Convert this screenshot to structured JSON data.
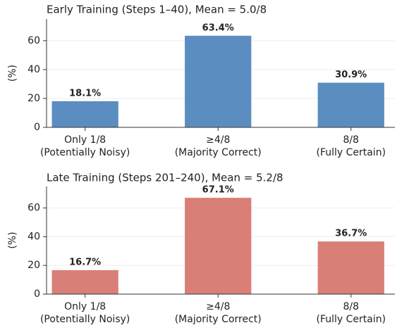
{
  "chart_data": [
    {
      "type": "bar",
      "title": "Early Training (Steps 1–40), Mean = 5.0/8",
      "title_color": "#4a72a8",
      "categories": [
        [
          "Only 1/8",
          "(Potentially Noisy)"
        ],
        [
          "≥4/8",
          "(Majority Correct)"
        ],
        [
          "8/8",
          "(Fully Certain)"
        ]
      ],
      "values": [
        18.1,
        63.4,
        30.9
      ],
      "value_labels": [
        "18.1%",
        "63.4%",
        "30.9%"
      ],
      "color": "#5b8dc0",
      "label_color": "#3d6699",
      "ylabel": "(%)",
      "ylim": [
        0,
        75
      ],
      "yticks": [
        0,
        20,
        40,
        60
      ],
      "grid": true
    },
    {
      "type": "bar",
      "title": "Late Training (Steps 201–240), Mean = 5.2/8",
      "title_color": "#b5443c",
      "categories": [
        [
          "Only 1/8",
          "(Potentially Noisy)"
        ],
        [
          "≥4/8",
          "(Majority Correct)"
        ],
        [
          "8/8",
          "(Fully Certain)"
        ]
      ],
      "values": [
        16.7,
        67.1,
        36.7
      ],
      "value_labels": [
        "16.7%",
        "67.1%",
        "36.7%"
      ],
      "color": "#d97f78",
      "label_color": "#a8413a",
      "ylabel": "(%)",
      "ylim": [
        0,
        75
      ],
      "yticks": [
        0,
        20,
        40,
        60
      ],
      "grid": true
    }
  ]
}
